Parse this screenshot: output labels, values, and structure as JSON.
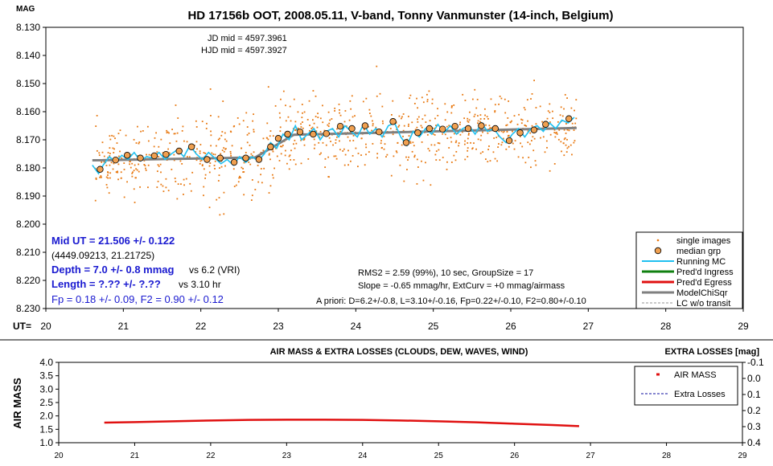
{
  "colors": {
    "single_images": "#E87810",
    "median_grp": "#F0A050",
    "running_mc": "#20C0F0",
    "ingress": "#108010",
    "egress": "#E01010",
    "model": "#808080",
    "lc_wo_transit": "#909090",
    "airmass": "#E01010",
    "extra_losses": "#1010A0",
    "info_blue": "#1A1AD0"
  },
  "top": {
    "title": "HD 17156b OOT, 2008.05.11, V-band, Tonny Vanmunster (14-inch, Belgium)",
    "mag_label": "MAG",
    "ut_label": "UT=",
    "jd_mid": "JD mid = 4597.3961",
    "hjd_mid": "HJD mid = 4597.3927",
    "mid_ut": "Mid UT = 21.506 +/- 0.122",
    "mid_coords": "(4449.09213, 21.21725)",
    "depth": "Depth = 7.0 +/- 0.8 mmag",
    "depth_note": "vs 6.2 (VRI)",
    "length": "Length = ?.?? +/- ?.??",
    "length_note": "vs 3.10 hr",
    "fp": "Fp = 0.18 +/- 0.09, F2 = 0.90 +/- 0.12",
    "rms": "RMS2 = 2.59 (99%), 10 sec, GroupSize = 17",
    "slope": "Slope = -0.65 mmag/hr, ExtCurv = +0 mmag/airmass",
    "apriori": "A priori: D=6.2+/-0.8, L=3.10+/-0.16, Fp=0.22+/-0.10, F2=0.80+/-0.10",
    "legend": [
      "single images",
      "median grp",
      "Running MC",
      "Pred'd Ingress",
      "Pred'd Egress",
      "ModelChiSqr",
      "LC w/o transit"
    ]
  },
  "bottom": {
    "title": "AIR MASS & EXTRA LOSSES (CLOUDS, DEW, WAVES, WIND)",
    "right_title": "EXTRA LOSSES [mag]",
    "ylabel": "AIR MASS",
    "legend": [
      "AIR MASS",
      "Extra Losses"
    ]
  },
  "chart_data": [
    {
      "type": "scatter",
      "xlim": [
        20,
        29
      ],
      "ylim": [
        8.13,
        8.23
      ],
      "y_inverted": true,
      "xticks": [
        "20",
        "21",
        "22",
        "23",
        "24",
        "25",
        "26",
        "27",
        "28",
        "29"
      ],
      "yticks": [
        "8.130",
        "8.140",
        "8.150",
        "8.160",
        "8.170",
        "8.180",
        "8.190",
        "8.200",
        "8.210",
        "8.220",
        "8.230"
      ],
      "grid": false,
      "legend_position": "bottom-right",
      "series": [
        {
          "name": "median grp",
          "x": [
            20.7,
            20.9,
            21.05,
            21.22,
            21.4,
            21.55,
            21.72,
            21.88,
            22.08,
            22.25,
            22.43,
            22.58,
            22.75,
            22.9,
            23.0,
            23.12,
            23.28,
            23.45,
            23.62,
            23.8,
            23.95,
            24.12,
            24.3,
            24.48,
            24.65,
            24.8,
            24.95,
            25.12,
            25.28,
            25.45,
            25.62,
            25.8,
            25.98,
            26.12,
            26.3,
            26.45,
            26.75
          ],
          "y": [
            8.1805,
            8.1772,
            8.1755,
            8.1765,
            8.1757,
            8.1752,
            8.174,
            8.1725,
            8.177,
            8.1765,
            8.178,
            8.1765,
            8.177,
            8.1725,
            8.1695,
            8.168,
            8.1672,
            8.168,
            8.1678,
            8.1652,
            8.166,
            8.165,
            8.1672,
            8.1635,
            8.171,
            8.1675,
            8.166,
            8.1662,
            8.1652,
            8.166,
            8.165,
            8.166,
            8.1703,
            8.1675,
            8.1665,
            8.1645,
            8.1625
          ]
        },
        {
          "name": "ModelChiSqr",
          "x": [
            20.6,
            22.7,
            23.2,
            26.85
          ],
          "y": [
            8.1773,
            8.1763,
            8.1682,
            8.1658
          ]
        },
        {
          "name": "Running MC",
          "x": [
            20.6,
            20.68,
            20.74,
            20.82,
            20.9,
            20.98,
            21.06,
            21.14,
            21.22,
            21.3,
            21.38,
            21.46,
            21.54,
            21.62,
            21.7,
            21.78,
            21.86,
            21.94,
            22.02,
            22.1,
            22.18,
            22.26,
            22.34,
            22.42,
            22.5,
            22.58,
            22.66,
            22.74,
            22.82,
            22.9,
            22.98,
            23.06,
            23.14,
            23.22,
            23.3,
            23.38,
            23.46,
            23.54,
            23.62,
            23.7,
            23.78,
            23.86,
            23.94,
            24.02,
            24.1,
            24.18,
            24.26,
            24.34,
            24.42,
            24.5,
            24.58,
            24.66,
            24.74,
            24.82,
            24.9,
            24.98,
            25.06,
            25.14,
            25.22,
            25.3,
            25.38,
            25.46,
            25.54,
            25.62,
            25.7,
            25.78,
            25.86,
            25.94,
            26.02,
            26.1,
            26.18,
            26.26,
            26.34,
            26.42,
            26.5,
            26.58,
            26.66,
            26.74,
            26.82
          ],
          "y": [
            8.179,
            8.182,
            8.179,
            8.176,
            8.178,
            8.1755,
            8.177,
            8.1745,
            8.1775,
            8.176,
            8.1765,
            8.1745,
            8.177,
            8.175,
            8.1735,
            8.176,
            8.172,
            8.175,
            8.177,
            8.1745,
            8.1765,
            8.1785,
            8.177,
            8.179,
            8.176,
            8.178,
            8.176,
            8.1775,
            8.175,
            8.171,
            8.173,
            8.168,
            8.17,
            8.165,
            8.17,
            8.168,
            8.166,
            8.17,
            8.167,
            8.166,
            8.169,
            8.165,
            8.167,
            8.169,
            8.1645,
            8.168,
            8.166,
            8.169,
            8.165,
            8.164,
            8.169,
            8.172,
            8.167,
            8.169,
            8.166,
            8.168,
            8.1645,
            8.1675,
            8.165,
            8.168,
            8.166,
            8.165,
            8.168,
            8.164,
            8.167,
            8.166,
            8.169,
            8.171,
            8.168,
            8.166,
            8.169,
            8.166,
            8.165,
            8.167,
            8.164,
            8.166,
            8.163,
            8.164,
            8.162
          ]
        }
      ]
    },
    {
      "type": "line",
      "xlim": [
        20,
        29
      ],
      "ylim": [
        1.0,
        4.0
      ],
      "right_ylim": [
        0.4,
        -0.1
      ],
      "xticks": [
        "20",
        "21",
        "22",
        "23",
        "24",
        "25",
        "26",
        "27",
        "28",
        "29"
      ],
      "yticks": [
        "1.0",
        "1.5",
        "2.0",
        "2.5",
        "3.0",
        "3.5",
        "4.0"
      ],
      "right_yticks": [
        "-0.1",
        "0.0",
        "0.1",
        "0.2",
        "0.3",
        "0.4"
      ],
      "grid": false,
      "legend_position": "top-right",
      "series": [
        {
          "name": "AIR MASS",
          "x": [
            20.6,
            21.0,
            21.5,
            22.0,
            22.5,
            23.0,
            23.5,
            24.0,
            24.5,
            25.0,
            25.5,
            26.0,
            26.5,
            26.85
          ],
          "y": [
            1.75,
            1.77,
            1.8,
            1.83,
            1.85,
            1.86,
            1.86,
            1.85,
            1.83,
            1.8,
            1.76,
            1.71,
            1.66,
            1.62
          ]
        }
      ]
    }
  ]
}
